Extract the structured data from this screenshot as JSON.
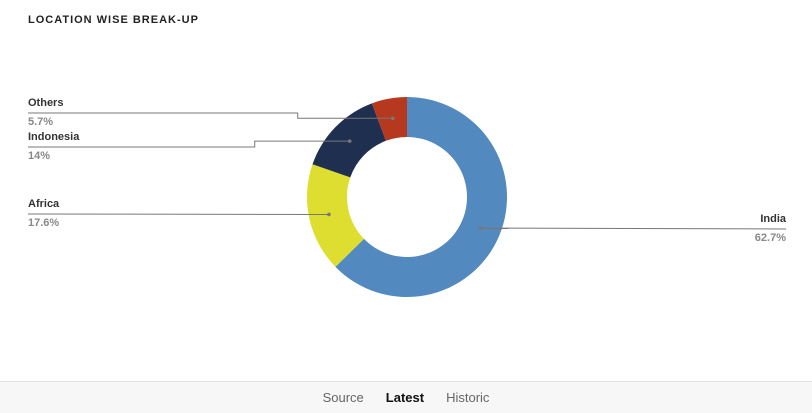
{
  "chart_data": {
    "type": "donut",
    "title": "LOCATION WISE BREAK-UP",
    "categories": [
      "India",
      "Africa",
      "Indonesia",
      "Others"
    ],
    "values": [
      62.7,
      17.6,
      14,
      5.7
    ],
    "value_labels": [
      "62.7%",
      "17.6%",
      "14%",
      "5.7%"
    ],
    "colors": [
      "#5289bf",
      "#dede30",
      "#1e2f50",
      "#b5381f"
    ]
  },
  "tabs": [
    "Source",
    "Latest",
    "Historic"
  ]
}
